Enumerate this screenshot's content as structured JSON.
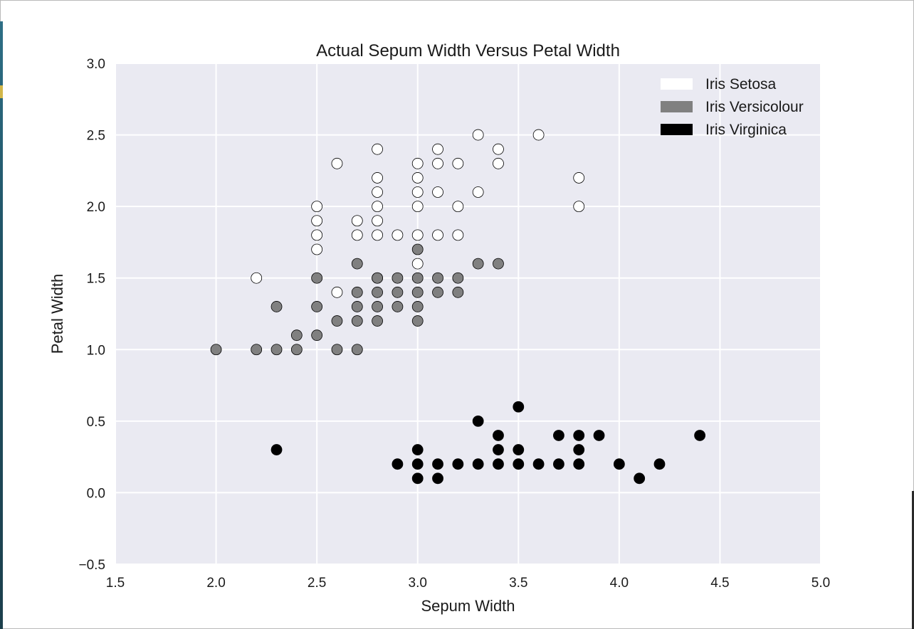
{
  "chart_data": {
    "type": "scatter",
    "title": "Actual Sepum Width Versus Petal Width",
    "xlabel": "Sepum Width",
    "ylabel": "Petal Width",
    "xlim": [
      1.5,
      5.0
    ],
    "ylim": [
      -0.5,
      3.0
    ],
    "x_ticks": [
      "1.5",
      "2.0",
      "2.5",
      "3.0",
      "3.5",
      "4.0",
      "4.5",
      "5.0"
    ],
    "y_ticks": [
      "−0.5",
      "0.0",
      "0.5",
      "1.0",
      "1.5",
      "2.0",
      "2.5",
      "3.0"
    ],
    "grid": true,
    "legend_position": "top-right",
    "background_color": "#eaeaf2",
    "series": [
      {
        "name": "Iris Setosa",
        "color": "#ffffff",
        "points": [
          [
            2.2,
            1.5
          ],
          [
            2.5,
            1.7
          ],
          [
            2.5,
            1.8
          ],
          [
            2.5,
            1.9
          ],
          [
            2.5,
            2.0
          ],
          [
            2.6,
            1.4
          ],
          [
            2.6,
            2.3
          ],
          [
            2.7,
            1.8
          ],
          [
            2.7,
            1.9
          ],
          [
            2.8,
            1.5
          ],
          [
            2.8,
            1.8
          ],
          [
            2.8,
            1.9
          ],
          [
            2.8,
            2.0
          ],
          [
            2.8,
            2.1
          ],
          [
            2.8,
            2.2
          ],
          [
            2.8,
            2.4
          ],
          [
            2.9,
            1.8
          ],
          [
            3.0,
            1.6
          ],
          [
            3.0,
            1.8
          ],
          [
            3.0,
            2.0
          ],
          [
            3.0,
            2.1
          ],
          [
            3.0,
            2.2
          ],
          [
            3.0,
            2.3
          ],
          [
            3.1,
            1.8
          ],
          [
            3.1,
            2.1
          ],
          [
            3.1,
            2.3
          ],
          [
            3.1,
            2.4
          ],
          [
            3.2,
            1.8
          ],
          [
            3.2,
            2.0
          ],
          [
            3.2,
            2.3
          ],
          [
            3.3,
            2.1
          ],
          [
            3.3,
            2.5
          ],
          [
            3.4,
            2.3
          ],
          [
            3.4,
            2.4
          ],
          [
            3.6,
            2.5
          ],
          [
            3.8,
            2.0
          ],
          [
            3.8,
            2.2
          ]
        ]
      },
      {
        "name": "Iris Versicolour",
        "color": "#808080",
        "points": [
          [
            2.0,
            1.0
          ],
          [
            2.2,
            1.0
          ],
          [
            2.3,
            1.0
          ],
          [
            2.3,
            1.3
          ],
          [
            2.4,
            1.0
          ],
          [
            2.4,
            1.1
          ],
          [
            2.5,
            1.1
          ],
          [
            2.5,
            1.3
          ],
          [
            2.5,
            1.5
          ],
          [
            2.6,
            1.0
          ],
          [
            2.6,
            1.2
          ],
          [
            2.7,
            1.0
          ],
          [
            2.7,
            1.2
          ],
          [
            2.7,
            1.3
          ],
          [
            2.7,
            1.4
          ],
          [
            2.7,
            1.6
          ],
          [
            2.8,
            1.2
          ],
          [
            2.8,
            1.3
          ],
          [
            2.8,
            1.4
          ],
          [
            2.8,
            1.5
          ],
          [
            2.9,
            1.3
          ],
          [
            2.9,
            1.4
          ],
          [
            2.9,
            1.5
          ],
          [
            3.0,
            1.2
          ],
          [
            3.0,
            1.3
          ],
          [
            3.0,
            1.4
          ],
          [
            3.0,
            1.5
          ],
          [
            3.0,
            1.7
          ],
          [
            3.1,
            1.4
          ],
          [
            3.1,
            1.5
          ],
          [
            3.2,
            1.4
          ],
          [
            3.2,
            1.5
          ],
          [
            3.3,
            1.6
          ],
          [
            3.4,
            1.6
          ]
        ]
      },
      {
        "name": "Iris Virginica",
        "color": "#000000",
        "points": [
          [
            2.3,
            0.3
          ],
          [
            2.9,
            0.2
          ],
          [
            3.0,
            0.1
          ],
          [
            3.0,
            0.2
          ],
          [
            3.0,
            0.3
          ],
          [
            3.1,
            0.1
          ],
          [
            3.1,
            0.2
          ],
          [
            3.2,
            0.2
          ],
          [
            3.3,
            0.2
          ],
          [
            3.3,
            0.5
          ],
          [
            3.4,
            0.2
          ],
          [
            3.4,
            0.3
          ],
          [
            3.4,
            0.4
          ],
          [
            3.5,
            0.2
          ],
          [
            3.5,
            0.3
          ],
          [
            3.5,
            0.6
          ],
          [
            3.6,
            0.2
          ],
          [
            3.7,
            0.2
          ],
          [
            3.7,
            0.4
          ],
          [
            3.8,
            0.2
          ],
          [
            3.8,
            0.3
          ],
          [
            3.8,
            0.4
          ],
          [
            3.9,
            0.4
          ],
          [
            4.0,
            0.2
          ],
          [
            4.1,
            0.1
          ],
          [
            4.2,
            0.2
          ],
          [
            4.4,
            0.4
          ]
        ]
      }
    ]
  }
}
